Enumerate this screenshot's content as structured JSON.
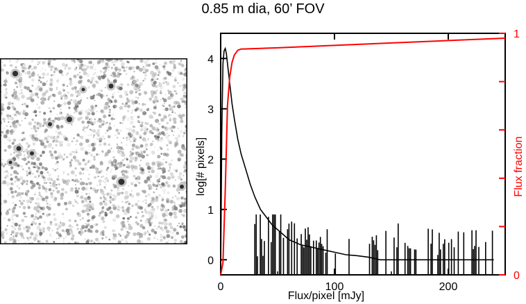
{
  "page": {
    "title": "0.85 m dia, 60’ FOV"
  },
  "sky_image": {
    "description_colors": {
      "background": "#ffffff",
      "source": "#303030"
    }
  },
  "chart_data": {
    "type": "line",
    "title": "0.85 m dia, 60’ FOV",
    "xlabel": "Flux/pixel [mJy]",
    "ylabel": "log[# pixels]",
    "y2label": "Flux fraction",
    "xlim": [
      0,
      250
    ],
    "ylim": [
      -0.3,
      4.5
    ],
    "y2lim": [
      0,
      1
    ],
    "xticks": [
      0,
      100,
      200
    ],
    "yticks": [
      0,
      1,
      2,
      3,
      4
    ],
    "y2ticks": [
      0,
      1
    ],
    "grid": false,
    "legend": "none",
    "colors": {
      "histogram": "#000000",
      "cumulative": "#ff0000",
      "right_axis": "#ff0000"
    },
    "series": [
      {
        "axis": "left",
        "color": "#000000",
        "x": [
          0,
          1,
          2,
          3,
          4,
          5,
          6,
          8,
          10,
          12,
          15,
          18,
          22,
          26,
          30,
          35,
          40,
          45,
          50,
          55,
          60,
          70,
          80,
          90,
          100,
          110,
          120,
          130,
          140,
          150,
          160,
          175,
          190,
          200,
          220,
          232,
          240
        ],
        "y": [
          -0.3,
          2.5,
          3.9,
          4.15,
          4.2,
          4.1,
          3.9,
          3.5,
          3.1,
          2.8,
          2.4,
          2.1,
          1.8,
          1.5,
          1.25,
          1.0,
          0.85,
          0.7,
          0.6,
          0.5,
          0.4,
          0.3,
          0.25,
          0.2,
          0.15,
          0.1,
          0.08,
          0.05,
          0.0,
          0.0,
          0.0,
          0.0,
          0.0,
          0.0,
          0.0,
          0.0,
          0.0
        ]
      },
      {
        "axis": "right",
        "color": "#ff0000",
        "x": [
          0,
          2,
          4,
          6,
          8,
          10,
          12,
          15,
          18,
          20,
          50,
          100,
          150,
          200,
          250
        ],
        "y": [
          0.0,
          0.05,
          0.35,
          0.7,
          0.82,
          0.88,
          0.91,
          0.93,
          0.935,
          0.935,
          0.94,
          0.95,
          0.96,
          0.97,
          0.98
        ]
      }
    ]
  }
}
